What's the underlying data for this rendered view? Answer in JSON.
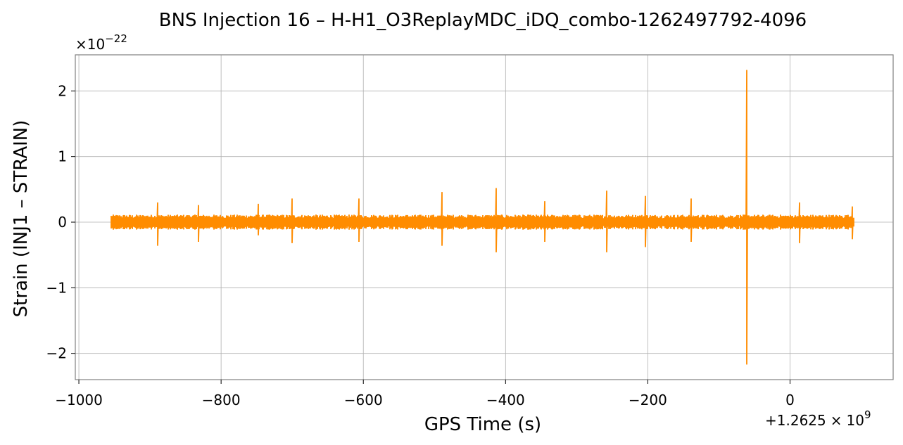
{
  "chart_data": {
    "type": "line",
    "title": "BNS Injection 16 – H-H1_O3ReplayMDC_iDQ_combo-1262497792-4096",
    "xlabel": "GPS Time (s)",
    "ylabel": "Strain (INJ1 – STRAIN)",
    "x_offset_label": "+1.2625×10^9",
    "y_multiplier_label": "×10^−22",
    "xlim": [
      -1005,
      145
    ],
    "ylim": [
      -2.4,
      2.55
    ],
    "x_ticks": [
      -1000,
      -800,
      -600,
      -400,
      -200,
      0
    ],
    "x_tick_labels": [
      "−1000",
      "−800",
      "−600",
      "−400",
      "−200",
      "0"
    ],
    "y_ticks": [
      -2,
      -1,
      0,
      1,
      2
    ],
    "y_tick_labels": [
      "−2",
      "−1",
      "0",
      "1",
      "2"
    ],
    "grid": true,
    "series_color": "#ff8c00",
    "series": [
      {
        "x_range": [
          -955,
          90
        ],
        "noise_amplitude": 0.1,
        "spikes": [
          {
            "x": -889,
            "max": 0.3,
            "min": -0.36
          },
          {
            "x": -832,
            "max": 0.26,
            "min": -0.3
          },
          {
            "x": -748,
            "max": 0.28,
            "min": -0.2
          },
          {
            "x": -700,
            "max": 0.36,
            "min": -0.32
          },
          {
            "x": -606,
            "max": 0.36,
            "min": -0.3
          },
          {
            "x": -489,
            "max": 0.46,
            "min": -0.36
          },
          {
            "x": -413,
            "max": 0.52,
            "min": -0.46
          },
          {
            "x": -345,
            "max": 0.32,
            "min": -0.3
          },
          {
            "x": -258,
            "max": 0.48,
            "min": -0.46
          },
          {
            "x": -203,
            "max": 0.4,
            "min": -0.38
          },
          {
            "x": -139,
            "max": 0.36,
            "min": -0.3
          },
          {
            "x": -61,
            "max": 2.32,
            "min": -2.17
          },
          {
            "x": 13,
            "max": 0.3,
            "min": -0.32
          },
          {
            "x": 88,
            "max": 0.24,
            "min": -0.26
          }
        ]
      }
    ]
  }
}
